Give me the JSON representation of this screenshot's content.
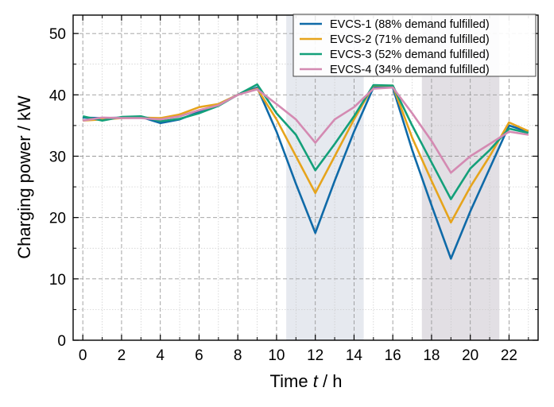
{
  "chart_data": {
    "type": "line",
    "xlabel_pre": "Time ",
    "xlabel_var": "t",
    "xlabel_post": " / h",
    "ylabel": "Charging power / kW",
    "xlim": [
      -0.5,
      23.5
    ],
    "ylim": [
      0,
      53
    ],
    "xticks": [
      0,
      2,
      4,
      6,
      8,
      10,
      12,
      14,
      16,
      18,
      20,
      22
    ],
    "yticks": [
      0,
      10,
      20,
      30,
      40,
      50
    ],
    "grid": true,
    "legend_position": "top-right",
    "shaded_regions": [
      {
        "x": [
          10.5,
          14.5
        ],
        "color": "#e6e9ef"
      },
      {
        "x": [
          17.5,
          21.5
        ],
        "color": "#e2dfe4"
      }
    ],
    "x": [
      0,
      1,
      2,
      3,
      4,
      5,
      6,
      7,
      8,
      9,
      10,
      11,
      12,
      13,
      14,
      15,
      16,
      17,
      18,
      19,
      20,
      21,
      22,
      23
    ],
    "series": [
      {
        "name": "EVCS-1 (88% demand fulfilled)",
        "color": "#0f6aa8",
        "values": [
          36.3,
          36.2,
          36.3,
          36.4,
          35.4,
          36.0,
          37.2,
          38.5,
          40.0,
          41.2,
          34.0,
          25.5,
          17.5,
          26.0,
          34.0,
          41.2,
          41.2,
          31.0,
          22.0,
          13.3,
          21.0,
          28.0,
          35.0,
          34.0
        ]
      },
      {
        "name": "EVCS-2 (71% demand fulfilled)",
        "color": "#e6a41c",
        "values": [
          35.8,
          36.0,
          36.2,
          36.3,
          36.2,
          36.8,
          38.0,
          38.5,
          40.0,
          41.0,
          36.0,
          30.0,
          24.0,
          30.0,
          36.0,
          41.5,
          41.5,
          33.0,
          26.0,
          19.2,
          25.0,
          30.0,
          35.5,
          34.1
        ]
      },
      {
        "name": "EVCS-3 (52% demand fulfilled)",
        "color": "#14a07a",
        "values": [
          36.5,
          35.8,
          36.4,
          36.5,
          35.7,
          36.1,
          37.0,
          38.2,
          40.0,
          41.7,
          37.0,
          33.5,
          27.7,
          32.0,
          36.5,
          41.6,
          41.5,
          35.0,
          29.0,
          23.0,
          28.0,
          31.0,
          34.5,
          33.8
        ]
      },
      {
        "name": "EVCS-4 (34% demand fulfilled)",
        "color": "#d48ab2",
        "values": [
          35.8,
          36.3,
          36.2,
          36.2,
          36.0,
          36.5,
          37.5,
          38.3,
          40.0,
          40.9,
          38.5,
          36.0,
          32.2,
          36.0,
          38.0,
          41.0,
          41.2,
          37.0,
          32.5,
          27.3,
          30.0,
          32.0,
          34.0,
          33.5
        ]
      }
    ]
  }
}
